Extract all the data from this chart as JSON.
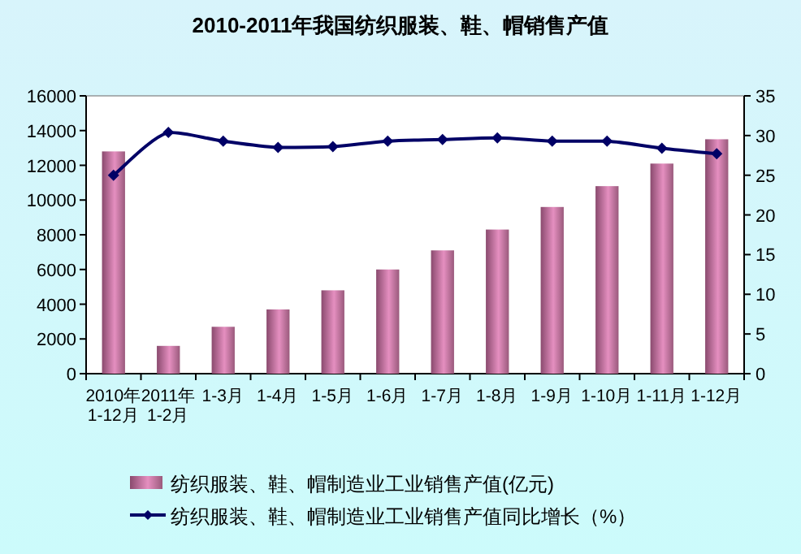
{
  "chart_data": {
    "type": "bar",
    "title": "2010-2011年我国纺织服装、鞋、帽销售产值",
    "categories": [
      "2010年\n1-12月",
      "2011年\n1-2月",
      "1-3月",
      "1-4月",
      "1-5月",
      "1-6月",
      "1-7月",
      "1-8月",
      "1-9月",
      "1-10月",
      "1-11月",
      "1-12月"
    ],
    "series": [
      {
        "name": "纺织服装、鞋、帽制造业工业销售产值(亿元)",
        "color": "#e58fc0",
        "values": [
          12800,
          1600,
          2700,
          3700,
          4800,
          6000,
          7100,
          8300,
          9600,
          10800,
          12100,
          13500
        ]
      },
      {
        "name": "纺织服装、鞋、帽制造业工业销售产值同比增长（%）",
        "type": "line",
        "axis": "y2",
        "color": "#000066",
        "marker": "diamond",
        "values": [
          25.0,
          30.4,
          29.3,
          28.5,
          28.6,
          29.3,
          29.5,
          29.7,
          29.3,
          29.3,
          28.4,
          27.7
        ]
      }
    ],
    "ylim": [
      0,
      16000
    ],
    "yticks": [
      0,
      2000,
      4000,
      6000,
      8000,
      10000,
      12000,
      14000,
      16000
    ],
    "y2lim": [
      0,
      35
    ],
    "y2ticks": [
      0,
      5,
      10,
      15,
      20,
      25,
      30,
      35
    ],
    "grid": false,
    "legend": "bottom"
  }
}
